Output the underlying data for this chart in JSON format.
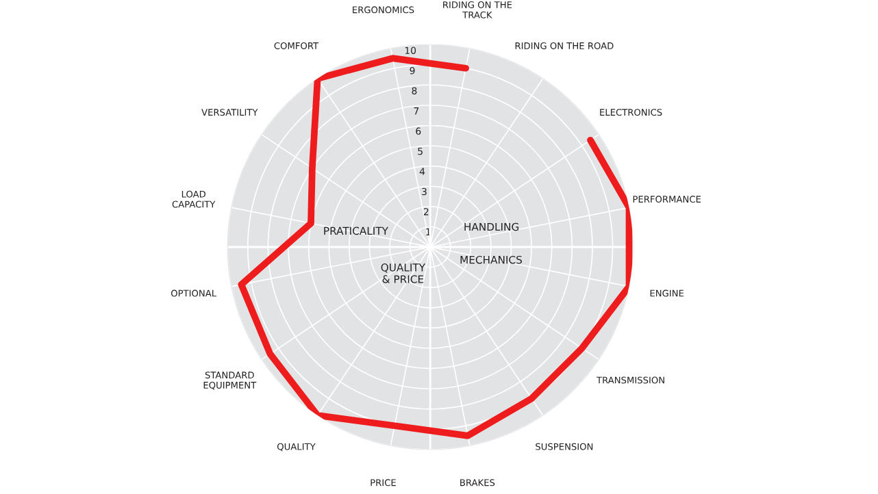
{
  "chart_data": {
    "type": "radar",
    "categories": [
      "RIDING ON THE\nTRACK",
      "RIDING ON THE ROAD",
      "ELECTRONICS",
      "PERFORMANCE",
      "ENGINE",
      "TRANSMISSION",
      "SUSPENSION",
      "BRAKES",
      "PRICE",
      "QUALITY",
      "STANDARD\nEQUIPMENT",
      "OPTIONAL",
      "LOAD\nCAPACITY",
      "VERSATILITY",
      "COMFORT",
      "ERGONOMICS"
    ],
    "series": [
      {
        "color": "#ee1c1c",
        "values": [
          9,
          null,
          9.5,
          10,
          10,
          9,
          9,
          9.5,
          9,
          10,
          9.5,
          9.5,
          6,
          7,
          10,
          9.5
        ]
      }
    ],
    "ylim": [
      0,
      10
    ],
    "yticks": [
      1,
      2,
      3,
      4,
      5,
      6,
      7,
      8,
      9,
      10
    ],
    "grid": true,
    "annotations": [
      "HANDLING",
      "MECHANICS",
      "QUALITY\n& PRICE",
      "PRATICALITY"
    ]
  }
}
